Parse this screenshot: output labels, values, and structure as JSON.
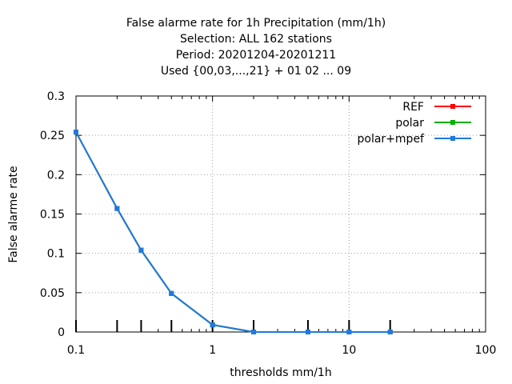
{
  "chart_data": {
    "type": "line",
    "title_lines": [
      "False alarme rate  for 1h Precipitation (mm/1h)",
      "Selection: ALL    162 stations",
      "Period: 20201204-20201211",
      "Used {00,03,...,21} + 01 02 ... 09"
    ],
    "xlabel": "thresholds mm/1h",
    "ylabel": "False alarme rate",
    "x_scale": "log",
    "xlim": [
      0.1,
      100
    ],
    "ylim": [
      0,
      0.3
    ],
    "x_ticks": [
      0.1,
      1,
      10,
      100
    ],
    "x_tick_labels": [
      "0.1",
      "1",
      "10",
      "100"
    ],
    "y_ticks": [
      0,
      0.05,
      0.1,
      0.15,
      0.2,
      0.25,
      0.3
    ],
    "y_tick_labels": [
      "0",
      "0.05",
      "0.1",
      "0.15",
      "0.2",
      "0.25",
      "0.3"
    ],
    "grid": true,
    "legend_position": "top-right",
    "threshold_marks": [
      0.1,
      0.2,
      0.3,
      0.5,
      1,
      2,
      5,
      10,
      20
    ],
    "series": [
      {
        "name": "REF",
        "color": "#ff0000",
        "x": [
          0.1,
          0.2,
          0.3,
          0.5,
          1,
          2,
          5,
          10,
          20
        ],
        "y": [
          0.254,
          0.157,
          0.104,
          0.049,
          0.009,
          0.0,
          0.0,
          0.0,
          0.0
        ]
      },
      {
        "name": "polar",
        "color": "#00b000",
        "x": [
          0.1,
          0.2,
          0.3,
          0.5,
          1,
          2,
          5,
          10,
          20
        ],
        "y": [
          0.254,
          0.157,
          0.104,
          0.049,
          0.009,
          0.0,
          0.0,
          0.0,
          0.0
        ]
      },
      {
        "name": "polar+mpef",
        "color": "#1e7ae0",
        "x": [
          0.1,
          0.2,
          0.3,
          0.5,
          1,
          2,
          5,
          10,
          20
        ],
        "y": [
          0.254,
          0.157,
          0.104,
          0.049,
          0.009,
          0.0,
          0.0,
          0.0,
          0.0
        ]
      }
    ]
  }
}
